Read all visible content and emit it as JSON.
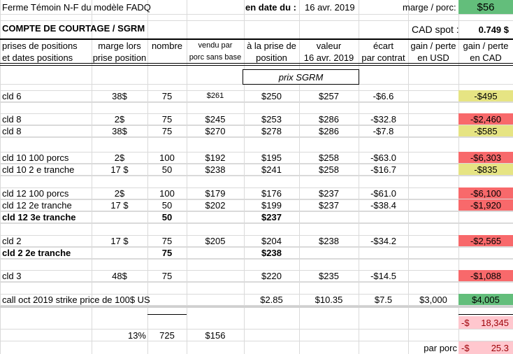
{
  "header": {
    "title": "Ferme Témoin  N-F du modèle FADQ",
    "date_label": "en date du :",
    "date_value": "16 avr. 2019",
    "marge_label": "marge / porc:",
    "marge_value": "$56",
    "section_title": "COMPTE DE COURTAGE / SGRM",
    "cad_spot_label": "CAD spot :",
    "cad_spot_value": "0.749 $"
  },
  "columns": [
    [
      "prises de positions",
      "et dates positions"
    ],
    [
      "marge lors",
      "prise position"
    ],
    [
      "nombre",
      ""
    ],
    [
      "vendu par",
      "porc sans base"
    ],
    [
      "à la prise de",
      "position"
    ],
    [
      "valeur",
      "16 avr. 2019"
    ],
    [
      "écart",
      "par contrat"
    ],
    [
      "gain / perte",
      "en USD"
    ],
    [
      "gain / perte",
      "en CAD"
    ]
  ],
  "prix_sgrm_label": "prix SGRM",
  "colors": {
    "yellow": "#e6e483",
    "red": "#f8696b",
    "green": "#63be7b",
    "pink": "#ffc7ce"
  },
  "rows": [
    {
      "cells": [
        "cld 6",
        "38$",
        "75",
        "$261",
        "$250",
        "$257",
        "-$6.6",
        "",
        "-$495"
      ],
      "fill": "yellow"
    },
    {
      "cells": [
        "cld 8",
        "2$",
        "75",
        "$245",
        "$253",
        "$286",
        "-$32.8",
        "",
        "-$2,460"
      ],
      "fill": "red"
    },
    {
      "cells": [
        "cld 8",
        "38$",
        "75",
        "$270",
        "$278",
        "$286",
        "-$7.8",
        "",
        "-$585"
      ],
      "fill": "yellow"
    },
    {
      "cells": [
        "cld 10    100 porcs",
        "2$",
        "100",
        "$192",
        "$195",
        "$258",
        "-$63.0",
        "",
        "-$6,303"
      ],
      "fill": "red"
    },
    {
      "cells": [
        "cld  10    2 e tranche",
        "17 $",
        "50",
        "$238",
        "$241",
        "$258",
        "-$16.7",
        "",
        "-$835"
      ],
      "fill": "yellow"
    },
    {
      "cells": [
        "cld 12    100 porcs",
        "2$",
        "100",
        "$179",
        "$176",
        "$237",
        "-$61.0",
        "",
        "-$6,100"
      ],
      "fill": "red"
    },
    {
      "cells": [
        "cld 12  2e tranche",
        "17 $",
        "50",
        "$202",
        "$199",
        "$237",
        "-$38.4",
        "",
        "-$1,920"
      ],
      "fill": "red"
    },
    {
      "cells": [
        "cld 12  3e tranche",
        "",
        "50",
        "",
        "$237",
        "",
        "",
        "",
        ""
      ],
      "fill": "",
      "bold": true
    },
    {
      "cells": [
        "cld 2",
        "17 $",
        "75",
        "$205",
        "$204",
        "$238",
        "-$34.2",
        "",
        "-$2,565"
      ],
      "fill": "red"
    },
    {
      "cells": [
        "cld 2    2e tranche",
        "",
        "75",
        "",
        "$238",
        "",
        "",
        "",
        ""
      ],
      "fill": "",
      "bold": true
    },
    {
      "cells": [
        "cld 3",
        "48$",
        "75",
        "",
        "$220",
        "$235",
        "-$14.5",
        "",
        "-$1,088"
      ],
      "fill": "red"
    },
    {
      "cells": [
        "call  oct 2019  strike price de  100$ US",
        "",
        "",
        "",
        "$2.85",
        "$10.35",
        "$7.5",
        "$3,000",
        "$4,005"
      ],
      "fill": "green"
    }
  ],
  "totals": {
    "total_sign": "-$",
    "total_value": "18,345",
    "pct": "13%",
    "nombre_total": "725",
    "vendu_moyen": "$156",
    "par_porc_label": "par porc",
    "par_porc_sign": "-$",
    "par_porc_value": "25.3"
  }
}
